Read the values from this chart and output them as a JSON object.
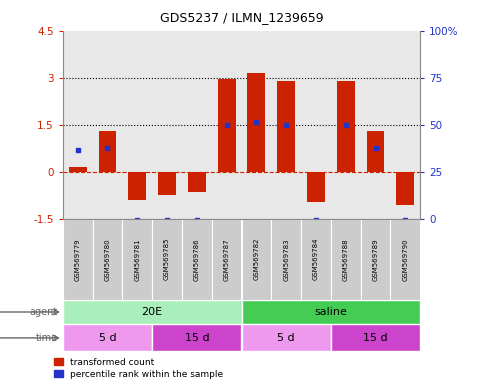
{
  "title": "GDS5237 / ILMN_1239659",
  "samples": [
    "GSM569779",
    "GSM569780",
    "GSM569781",
    "GSM569785",
    "GSM569786",
    "GSM569787",
    "GSM569782",
    "GSM569783",
    "GSM569784",
    "GSM569788",
    "GSM569789",
    "GSM569790"
  ],
  "red_values": [
    0.15,
    1.3,
    -0.9,
    -0.75,
    -0.65,
    2.95,
    3.15,
    2.9,
    -0.95,
    2.9,
    1.3,
    -1.05
  ],
  "blue_values_axis": [
    0.7,
    0.75,
    -1.55,
    -1.55,
    -1.55,
    1.5,
    1.6,
    1.5,
    -1.55,
    1.5,
    0.75,
    -1.55
  ],
  "ylim": [
    -1.5,
    4.5
  ],
  "y2lim": [
    0,
    100
  ],
  "yticks": [
    -1.5,
    0,
    1.5,
    3,
    4.5
  ],
  "ytick_labels": [
    "-1.5",
    "0",
    "1.5",
    "3",
    "4.5"
  ],
  "y2ticks": [
    0,
    25,
    50,
    75,
    100
  ],
  "y2tick_labels": [
    "0",
    "25",
    "50",
    "75",
    "100%"
  ],
  "hlines": [
    3.0,
    1.5
  ],
  "red_color": "#cc2200",
  "blue_color": "#2233cc",
  "zero_line_color": "#cc2200",
  "agent_label": "agent",
  "time_label": "time",
  "agent_groups": [
    {
      "label": "20E",
      "start": 0,
      "end": 6,
      "color": "#aaeebb"
    },
    {
      "label": "saline",
      "start": 6,
      "end": 12,
      "color": "#44cc55"
    }
  ],
  "time_groups": [
    {
      "label": "5 d",
      "start": 0,
      "end": 3,
      "color": "#ee99ee"
    },
    {
      "label": "15 d",
      "start": 3,
      "end": 6,
      "color": "#cc44cc"
    },
    {
      "label": "5 d",
      "start": 6,
      "end": 9,
      "color": "#ee99ee"
    },
    {
      "label": "15 d",
      "start": 9,
      "end": 12,
      "color": "#cc44cc"
    }
  ],
  "legend_red": "transformed count",
  "legend_blue": "percentile rank within the sample",
  "plot_bg": "#e8e8e8",
  "sample_bg": "#cccccc",
  "bar_width": 0.6
}
